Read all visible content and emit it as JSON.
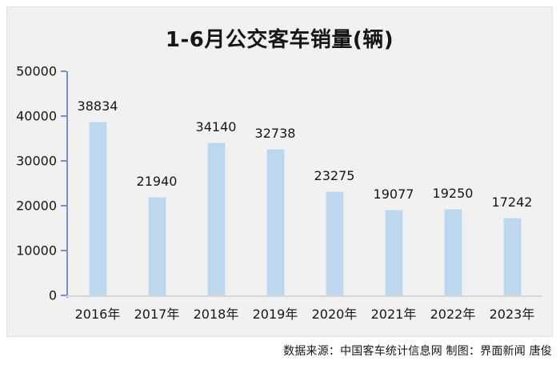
{
  "chart_data": {
    "type": "bar",
    "title": "1-6月公交客车销量(辆)",
    "categories": [
      "2016年",
      "2017年",
      "2018年",
      "2019年",
      "2020年",
      "2021年",
      "2022年",
      "2023年"
    ],
    "values": [
      38834,
      21940,
      34140,
      32738,
      23275,
      19077,
      19250,
      17242
    ],
    "data_labels": [
      38834,
      21940,
      34140,
      32738,
      23275,
      19077,
      19250,
      17242
    ],
    "xlabel": "",
    "ylabel": "",
    "ylim": [
      0,
      50000
    ],
    "yticks": [
      0,
      10000,
      20000,
      30000,
      40000,
      50000
    ],
    "grid": false,
    "legend": "none",
    "bar_color": "#bdd7ee",
    "axis_color": "#7191c2",
    "baseline_color": "#d6d6d6",
    "panel_background": "#f2f1f1"
  },
  "footer": {
    "text": "数据来源：中国客车统计信息网  制图：界面新闻 唐俊"
  }
}
